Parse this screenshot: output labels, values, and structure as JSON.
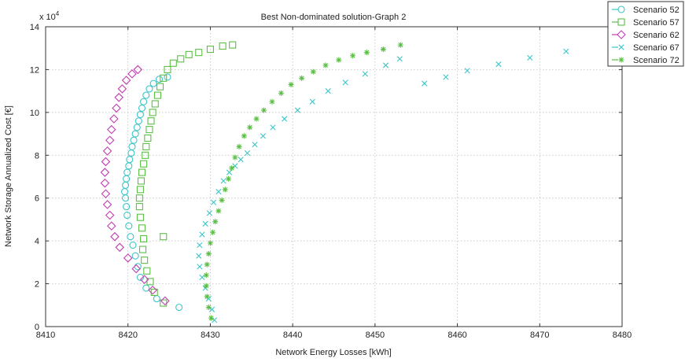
{
  "chart_data": {
    "type": "scatter",
    "title": "Best Non-dominated solution-Graph 2",
    "xlabel": "Network Energy Losses [kWh]",
    "ylabel": "Network Storage Annualized Cost [€]",
    "y_multiplier_label": "x 10",
    "y_multiplier_exp": "4",
    "xlim": [
      8410,
      8480
    ],
    "ylim": [
      0,
      14
    ],
    "x_ticks": [
      8410,
      8420,
      8430,
      8440,
      8450,
      8460,
      8470,
      8480
    ],
    "y_ticks": [
      0,
      2,
      4,
      6,
      8,
      10,
      12,
      14
    ],
    "grid": true,
    "legend_position": "top-right",
    "series": [
      {
        "name": "Scenario 52",
        "marker": "circle",
        "color": "#3cc6c9",
        "points": [
          [
            8426.2,
            0.9
          ],
          [
            8423.5,
            1.3
          ],
          [
            8422.2,
            1.8
          ],
          [
            8421.5,
            2.3
          ],
          [
            8421.2,
            2.8
          ],
          [
            8420.9,
            3.3
          ],
          [
            8420.6,
            3.8
          ],
          [
            8420.3,
            4.2
          ],
          [
            8420.1,
            4.7
          ],
          [
            8419.9,
            5.2
          ],
          [
            8419.8,
            5.6
          ],
          [
            8419.7,
            6.0
          ],
          [
            8419.6,
            6.3
          ],
          [
            8419.7,
            6.6
          ],
          [
            8419.8,
            6.9
          ],
          [
            8419.9,
            7.2
          ],
          [
            8420.1,
            7.5
          ],
          [
            8420.2,
            7.8
          ],
          [
            8420.4,
            8.1
          ],
          [
            8420.5,
            8.4
          ],
          [
            8420.7,
            8.7
          ],
          [
            8420.9,
            9.0
          ],
          [
            8421.1,
            9.3
          ],
          [
            8421.3,
            9.6
          ],
          [
            8421.5,
            9.9
          ],
          [
            8421.7,
            10.2
          ],
          [
            8421.9,
            10.5
          ],
          [
            8422.2,
            10.8
          ],
          [
            8422.6,
            11.1
          ],
          [
            8423.1,
            11.35
          ],
          [
            8423.8,
            11.55
          ],
          [
            8424.8,
            11.65
          ]
        ]
      },
      {
        "name": "Scenario 57",
        "marker": "square",
        "color": "#5cbf45",
        "points": [
          [
            8424.3,
            1.1
          ],
          [
            8423.2,
            1.6
          ],
          [
            8422.7,
            2.1
          ],
          [
            8422.3,
            2.6
          ],
          [
            8422.0,
            3.1
          ],
          [
            8421.8,
            3.6
          ],
          [
            8421.9,
            4.1
          ],
          [
            8424.3,
            4.2
          ],
          [
            8421.7,
            4.6
          ],
          [
            8421.5,
            5.1
          ],
          [
            8421.4,
            5.6
          ],
          [
            8421.4,
            6.0
          ],
          [
            8421.5,
            6.4
          ],
          [
            8421.6,
            6.8
          ],
          [
            8421.7,
            7.2
          ],
          [
            8421.9,
            7.6
          ],
          [
            8422.1,
            8.0
          ],
          [
            8422.2,
            8.4
          ],
          [
            8422.4,
            8.8
          ],
          [
            8422.6,
            9.2
          ],
          [
            8422.8,
            9.6
          ],
          [
            8423.0,
            10.0
          ],
          [
            8423.3,
            10.4
          ],
          [
            8423.6,
            10.8
          ],
          [
            8423.9,
            11.2
          ],
          [
            8424.3,
            11.6
          ],
          [
            8424.8,
            12.0
          ],
          [
            8425.5,
            12.3
          ],
          [
            8426.4,
            12.5
          ],
          [
            8427.4,
            12.7
          ],
          [
            8428.6,
            12.8
          ],
          [
            8430.0,
            12.95
          ],
          [
            8431.5,
            13.1
          ],
          [
            8432.7,
            13.15
          ]
        ]
      },
      {
        "name": "Scenario 62",
        "marker": "diamond",
        "color": "#c23db1",
        "points": [
          [
            8424.5,
            1.2
          ],
          [
            8423.0,
            1.7
          ],
          [
            8422.0,
            2.2
          ],
          [
            8421.0,
            2.7
          ],
          [
            8420.0,
            3.2
          ],
          [
            8419.0,
            3.7
          ],
          [
            8418.4,
            4.2
          ],
          [
            8418.0,
            4.7
          ],
          [
            8417.8,
            5.2
          ],
          [
            8417.5,
            5.7
          ],
          [
            8417.3,
            6.2
          ],
          [
            8417.2,
            6.7
          ],
          [
            8417.2,
            7.2
          ],
          [
            8417.3,
            7.7
          ],
          [
            8417.5,
            8.2
          ],
          [
            8417.8,
            8.7
          ],
          [
            8418.0,
            9.2
          ],
          [
            8418.3,
            9.7
          ],
          [
            8418.6,
            10.2
          ],
          [
            8418.9,
            10.7
          ],
          [
            8419.3,
            11.1
          ],
          [
            8419.8,
            11.5
          ],
          [
            8420.5,
            11.8
          ],
          [
            8421.2,
            12.0
          ]
        ]
      },
      {
        "name": "Scenario 67",
        "marker": "x",
        "color": "#3cc6c9",
        "points": [
          [
            8430.5,
            0.3
          ],
          [
            8430.2,
            0.8
          ],
          [
            8429.8,
            1.3
          ],
          [
            8429.4,
            1.8
          ],
          [
            8429.0,
            2.3
          ],
          [
            8428.7,
            2.8
          ],
          [
            8428.6,
            3.3
          ],
          [
            8428.7,
            3.8
          ],
          [
            8429.0,
            4.3
          ],
          [
            8429.4,
            4.8
          ],
          [
            8429.9,
            5.3
          ],
          [
            8430.4,
            5.8
          ],
          [
            8431.0,
            6.3
          ],
          [
            8431.6,
            6.8
          ],
          [
            8432.3,
            7.2
          ],
          [
            8433.0,
            7.5
          ],
          [
            8433.7,
            7.8
          ],
          [
            8434.5,
            8.1
          ],
          [
            8435.4,
            8.5
          ],
          [
            8436.4,
            8.9
          ],
          [
            8437.6,
            9.3
          ],
          [
            8439.0,
            9.7
          ],
          [
            8440.6,
            10.1
          ],
          [
            8442.4,
            10.5
          ],
          [
            8444.3,
            11.0
          ],
          [
            8446.4,
            11.4
          ],
          [
            8448.8,
            11.8
          ],
          [
            8451.3,
            12.2
          ],
          [
            8453.0,
            12.5
          ],
          [
            8456.0,
            11.35
          ],
          [
            8458.6,
            11.65
          ],
          [
            8461.2,
            11.95
          ],
          [
            8465.0,
            12.25
          ],
          [
            8468.8,
            12.55
          ],
          [
            8473.2,
            12.85
          ]
        ]
      },
      {
        "name": "Scenario 72",
        "marker": "asterisk",
        "color": "#5cbf45",
        "points": [
          [
            8430.1,
            0.4
          ],
          [
            8429.8,
            0.9
          ],
          [
            8429.6,
            1.4
          ],
          [
            8429.5,
            1.9
          ],
          [
            8429.5,
            2.4
          ],
          [
            8429.6,
            2.9
          ],
          [
            8429.8,
            3.4
          ],
          [
            8430.0,
            3.9
          ],
          [
            8430.3,
            4.4
          ],
          [
            8430.6,
            4.9
          ],
          [
            8431.0,
            5.4
          ],
          [
            8431.4,
            5.9
          ],
          [
            8431.8,
            6.4
          ],
          [
            8432.2,
            6.9
          ],
          [
            8432.6,
            7.4
          ],
          [
            8433.0,
            7.9
          ],
          [
            8433.5,
            8.4
          ],
          [
            8434.1,
            8.9
          ],
          [
            8434.8,
            9.3
          ],
          [
            8435.6,
            9.7
          ],
          [
            8436.5,
            10.1
          ],
          [
            8437.5,
            10.5
          ],
          [
            8438.6,
            10.9
          ],
          [
            8439.8,
            11.3
          ],
          [
            8441.1,
            11.6
          ],
          [
            8442.5,
            11.9
          ],
          [
            8444.0,
            12.2
          ],
          [
            8445.6,
            12.45
          ],
          [
            8447.3,
            12.65
          ],
          [
            8449.0,
            12.8
          ],
          [
            8451.0,
            12.95
          ],
          [
            8453.1,
            13.15
          ]
        ]
      }
    ]
  }
}
